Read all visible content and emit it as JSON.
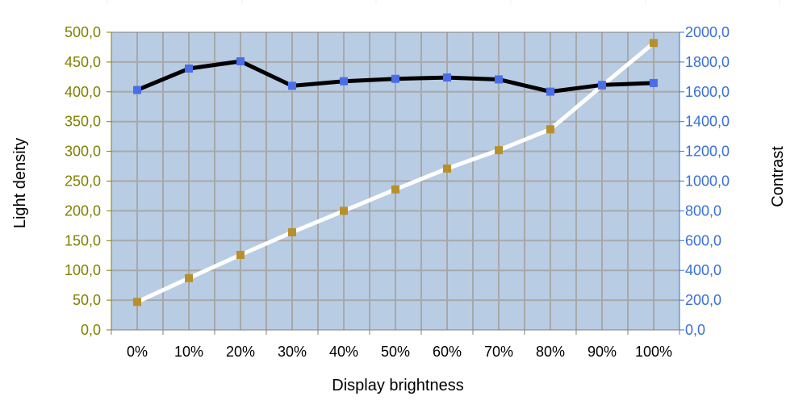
{
  "chart_data": {
    "type": "line",
    "title": "",
    "xlabel": "Display brightness",
    "ylabel_left": "Light density",
    "ylabel_right": "Contrast",
    "categories": [
      "0%",
      "10%",
      "20%",
      "30%",
      "40%",
      "50%",
      "60%",
      "70%",
      "80%",
      "90%",
      "100%"
    ],
    "y_left": {
      "range": [
        0,
        500
      ],
      "ticks": [
        "0,0",
        "50,0",
        "100,0",
        "150,0",
        "200,0",
        "250,0",
        "300,0",
        "350,0",
        "400,0",
        "450,0",
        "500,0"
      ],
      "tick_color": "#808000"
    },
    "y_right": {
      "range": [
        0,
        2000
      ],
      "ticks": [
        "0,0",
        "200,0",
        "400,0",
        "600,0",
        "800,0",
        "1000,0",
        "1200,0",
        "1400,0",
        "1600,0",
        "1800,0",
        "2000,0"
      ],
      "tick_color": "#3a6fd8"
    },
    "series": [
      {
        "axis": "left",
        "line_color": "#ffffff",
        "marker_color": "#b8902a",
        "values": [
          47,
          87,
          126,
          164,
          200,
          236,
          271,
          302,
          337,
          410,
          482
        ]
      },
      {
        "axis": "right",
        "line_color": "#000000",
        "marker_color": "#4a6ee8",
        "values": [
          1612,
          1756,
          1805,
          1640,
          1671,
          1687,
          1696,
          1683,
          1601,
          1646,
          1659
        ]
      }
    ],
    "grid": true,
    "plot_background": "#b8cce4",
    "grid_color": "#a8a8a8"
  }
}
